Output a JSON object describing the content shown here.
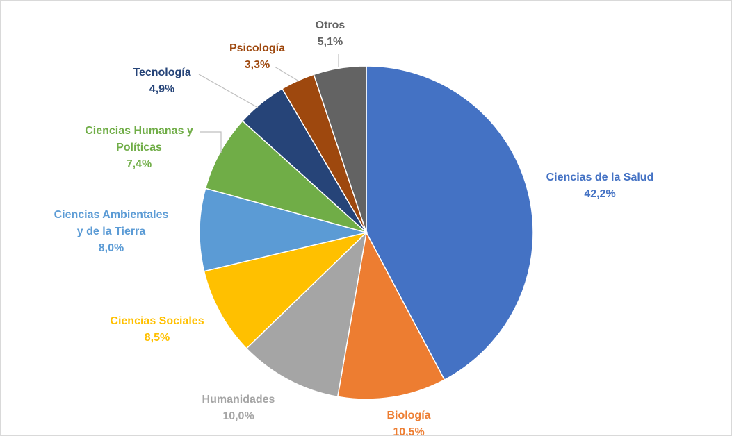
{
  "chart_data": {
    "type": "pie",
    "title": "",
    "start_angle_deg": 0,
    "direction": "clockwise",
    "legend": "none",
    "slices": [
      {
        "label_lines": [
          "Ciencias de la Salud"
        ],
        "value": 42.2,
        "value_label": "42,2%",
        "color": "#4472C4"
      },
      {
        "label_lines": [
          "Biología"
        ],
        "value": 10.5,
        "value_label": "10,5%",
        "color": "#ED7D31"
      },
      {
        "label_lines": [
          "Humanidades"
        ],
        "value": 10.0,
        "value_label": "10,0%",
        "color": "#A5A5A5"
      },
      {
        "label_lines": [
          "Ciencias Sociales"
        ],
        "value": 8.5,
        "value_label": "8,5%",
        "color": "#FFC000"
      },
      {
        "label_lines": [
          "Ciencias Ambientales",
          "y de la Tierra"
        ],
        "value": 8.0,
        "value_label": "8,0%",
        "color": "#5B9BD5"
      },
      {
        "label_lines": [
          "Ciencias Humanas y",
          "Políticas"
        ],
        "value": 7.4,
        "value_label": "7,4%",
        "color": "#70AD47"
      },
      {
        "label_lines": [
          "Tecnología"
        ],
        "value": 4.9,
        "value_label": "4,9%",
        "color": "#264478"
      },
      {
        "label_lines": [
          "Psicología"
        ],
        "value": 3.3,
        "value_label": "3,3%",
        "color": "#9E480E"
      },
      {
        "label_lines": [
          "Otros"
        ],
        "value": 5.1,
        "value_label": "5,1%",
        "color": "#636363"
      }
    ]
  }
}
